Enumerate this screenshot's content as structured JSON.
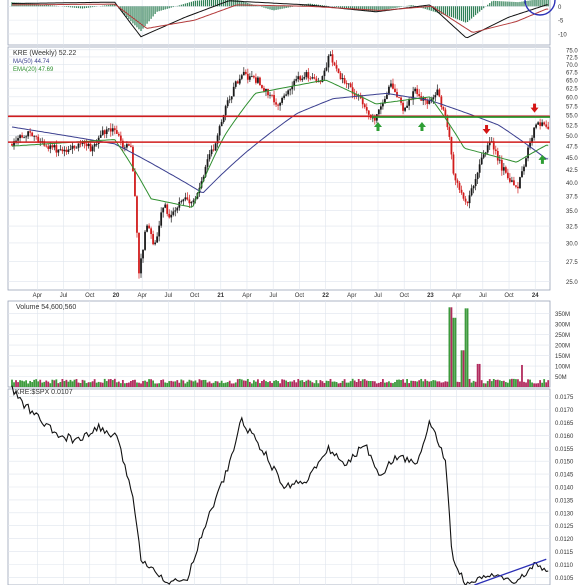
{
  "colors": {
    "background": "#ffffff",
    "panel_border": "#9aa3b8",
    "grid": "#dfe5ee",
    "up_candle": "#1a1a1a",
    "down_candle": "#d11c1c",
    "ma50": "#3b3f8f",
    "ema20": "#2f8f2f",
    "resistance": "#d11c1c",
    "support": "#1f9a2a",
    "arrow_up": "#2e9e34",
    "arrow_down": "#d41515",
    "volume_up": "#3c9a3c",
    "volume_down": "#b22b5e",
    "ratio_line": "#111111",
    "trendline": "#2b2fb5",
    "macd_hist": "#2f7f55",
    "macd_line": "#111111",
    "macd_signal": "#b33a3a"
  },
  "legend": {
    "price": "KRE (Weekly) 52.22",
    "ma": "MA(50) 44.74",
    "ema": "EMA(20) 47.69",
    "volume": "Volume 54,600,560",
    "ratio": "KRE:$SPX 0.0107"
  },
  "top_panel_ticks": [
    "0",
    "-5",
    "-10"
  ],
  "x_labels": [
    "Apr",
    "Jul",
    "Oct",
    "20",
    "Apr",
    "Jul",
    "Oct",
    "21",
    "Apr",
    "Jul",
    "Oct",
    "22",
    "Apr",
    "Jul",
    "Oct",
    "23",
    "Apr",
    "Jul",
    "Oct",
    "24"
  ],
  "chart_data": [
    {
      "type": "candlestick",
      "title": "KRE (Weekly) 52.22",
      "x_range": [
        "2019-01",
        "2024-02"
      ],
      "ylim": [
        24,
        76
      ],
      "scale": "log",
      "y_ticks": [
        "75.0",
        "72.5",
        "70.0",
        "67.5",
        "65.0",
        "62.5",
        "60.0",
        "57.5",
        "55.0",
        "52.5",
        "50.0",
        "47.5",
        "45.0",
        "42.5",
        "40.0",
        "37.5",
        "35.0",
        "32.5",
        "30.0",
        "27.5",
        "25.0"
      ],
      "close_path": [
        [
          "2019-01-04",
          48.0
        ],
        [
          "2019-03-01",
          50.5
        ],
        [
          "2019-05-03",
          47.5
        ],
        [
          "2019-06-07",
          46.8
        ],
        [
          "2019-08-02",
          47.0
        ],
        [
          "2019-09-06",
          48.5
        ],
        [
          "2019-10-04",
          47.0
        ],
        [
          "2019-11-29",
          51.5
        ],
        [
          "2020-01-03",
          50.5
        ],
        [
          "2020-01-31",
          47.0
        ],
        [
          "2020-02-21",
          48.5
        ],
        [
          "2020-03-13",
          32.0
        ],
        [
          "2020-03-20",
          25.5
        ],
        [
          "2020-04-17",
          33.0
        ],
        [
          "2020-05-15",
          29.5
        ],
        [
          "2020-06-12",
          36.0
        ],
        [
          "2020-07-10",
          34.0
        ],
        [
          "2020-08-28",
          37.5
        ],
        [
          "2020-10-02",
          36.0
        ],
        [
          "2020-11-13",
          44.0
        ],
        [
          "2020-12-18",
          49.0
        ],
        [
          "2021-01-15",
          57.0
        ],
        [
          "2021-03-12",
          67.0
        ],
        [
          "2021-05-07",
          65.0
        ],
        [
          "2021-07-16",
          57.5
        ],
        [
          "2021-08-27",
          63.0
        ],
        [
          "2021-10-22",
          67.0
        ],
        [
          "2021-12-17",
          64.0
        ],
        [
          "2022-01-14",
          73.0
        ],
        [
          "2022-02-25",
          66.0
        ],
        [
          "2022-04-22",
          60.0
        ],
        [
          "2022-06-17",
          53.5
        ],
        [
          "2022-08-12",
          63.5
        ],
        [
          "2022-09-30",
          56.5
        ],
        [
          "2022-11-11",
          62.0
        ],
        [
          "2022-12-16",
          58.0
        ],
        [
          "2023-01-27",
          61.5
        ],
        [
          "2023-03-10",
          49.0
        ],
        [
          "2023-03-17",
          42.0
        ],
        [
          "2023-05-05",
          35.5
        ],
        [
          "2023-06-09",
          41.5
        ],
        [
          "2023-07-28",
          49.0
        ],
        [
          "2023-09-01",
          43.5
        ],
        [
          "2023-10-27",
          38.5
        ],
        [
          "2023-12-08",
          47.0
        ],
        [
          "2024-01-05",
          53.5
        ],
        [
          "2024-02-09",
          52.2
        ]
      ],
      "ma50_path": [
        [
          "2019-01-04",
          52.0
        ],
        [
          "2019-12-27",
          48.0
        ],
        [
          "2020-06-26",
          42.0
        ],
        [
          "2020-10-30",
          38.0
        ],
        [
          "2021-03-26",
          46.0
        ],
        [
          "2021-09-24",
          55.5
        ],
        [
          "2022-01-28",
          59.5
        ],
        [
          "2022-07-29",
          61.0
        ],
        [
          "2022-12-30",
          59.0
        ],
        [
          "2023-05-26",
          55.0
        ],
        [
          "2023-08-25",
          52.5
        ],
        [
          "2024-02-09",
          44.7
        ]
      ],
      "ema20_path": [
        [
          "2019-01-04",
          47.5
        ],
        [
          "2019-12-27",
          49.0
        ],
        [
          "2020-05-01",
          37.0
        ],
        [
          "2020-09-25",
          35.5
        ],
        [
          "2021-01-15",
          50.0
        ],
        [
          "2021-04-30",
          61.0
        ],
        [
          "2021-12-31",
          65.0
        ],
        [
          "2022-06-24",
          58.0
        ],
        [
          "2022-12-30",
          60.0
        ],
        [
          "2023-04-28",
          47.0
        ],
        [
          "2023-10-27",
          44.0
        ],
        [
          "2024-02-09",
          47.7
        ]
      ],
      "horizontal_lines": [
        {
          "kind": "resistance",
          "y": 54.7
        },
        {
          "kind": "resistance",
          "y": 48.4
        },
        {
          "kind": "support",
          "y": 54.5
        }
      ],
      "up_arrows": [
        [
          "2022-07-01",
          52.0
        ],
        [
          "2022-12-02",
          52.0
        ],
        [
          "2024-01-26",
          44.5
        ]
      ],
      "down_arrows": [
        [
          "2023-07-14",
          51.5
        ],
        [
          "2023-12-29",
          57.0
        ]
      ]
    },
    {
      "type": "bar",
      "title": "Volume 54,600,560",
      "ylim": [
        0,
        410
      ],
      "y_ticks": [
        "350M",
        "300M",
        "250M",
        "200M",
        "150M",
        "100M",
        "50M"
      ],
      "baseline_volume_m": 28,
      "spikes": [
        [
          "2023-03-10",
          380
        ],
        [
          "2023-03-24",
          330
        ],
        [
          "2023-04-21",
          175
        ],
        [
          "2023-05-05",
          375
        ],
        [
          "2023-06-16",
          110
        ],
        [
          "2023-11-17",
          105
        ]
      ]
    },
    {
      "type": "line",
      "title": "KRE:$SPX 0.0107",
      "ylim": [
        0.0102,
        0.0178
      ],
      "y_ticks": [
        "0.0175",
        "0.0170",
        "0.0165",
        "0.0160",
        "0.0155",
        "0.0150",
        "0.0145",
        "0.0140",
        "0.0135",
        "0.0130",
        "0.0125",
        "0.0120",
        "0.0115",
        "0.0110",
        "0.0105"
      ],
      "series": [
        [
          "2019-01-04",
          0.0178
        ],
        [
          "2019-02-15",
          0.0172
        ],
        [
          "2019-04-12",
          0.0166
        ],
        [
          "2019-06-07",
          0.016
        ],
        [
          "2019-08-30",
          0.0158
        ],
        [
          "2019-11-01",
          0.0163
        ],
        [
          "2020-01-03",
          0.0159
        ],
        [
          "2020-02-28",
          0.0138
        ],
        [
          "2020-03-27",
          0.0112
        ],
        [
          "2020-05-15",
          0.0108
        ],
        [
          "2020-06-26",
          0.0103
        ],
        [
          "2020-09-04",
          0.0104
        ],
        [
          "2020-11-06",
          0.0125
        ],
        [
          "2021-01-29",
          0.0148
        ],
        [
          "2021-03-12",
          0.0166
        ],
        [
          "2021-05-28",
          0.0154
        ],
        [
          "2021-08-06",
          0.014
        ],
        [
          "2021-10-29",
          0.0143
        ],
        [
          "2022-01-14",
          0.0155
        ],
        [
          "2022-03-11",
          0.0148
        ],
        [
          "2022-05-13",
          0.0157
        ],
        [
          "2022-07-08",
          0.0145
        ],
        [
          "2022-09-09",
          0.0152
        ],
        [
          "2022-11-11",
          0.0149
        ],
        [
          "2022-12-30",
          0.0165
        ],
        [
          "2023-02-24",
          0.015
        ],
        [
          "2023-03-17",
          0.0112
        ],
        [
          "2023-05-05",
          0.0102
        ],
        [
          "2023-07-28",
          0.0106
        ],
        [
          "2023-10-27",
          0.0103
        ],
        [
          "2023-12-29",
          0.011
        ],
        [
          "2024-02-09",
          0.0107
        ]
      ],
      "trendline": [
        [
          "2023-06-02",
          0.0102
        ],
        [
          "2024-02-09",
          0.0112
        ]
      ]
    },
    {
      "type": "bar",
      "title": "",
      "ylim": [
        -14,
        3
      ],
      "y_ticks": [
        "0",
        "-5",
        "-10"
      ],
      "histogram": [
        [
          "2019-01-04",
          1.5
        ],
        [
          "2019-05-03",
          0.5
        ],
        [
          "2019-09-06",
          -0.8
        ],
        [
          "2019-12-27",
          0.8
        ],
        [
          "2020-02-28",
          -6.0
        ],
        [
          "2020-03-27",
          -9.0
        ],
        [
          "2020-05-22",
          -2.0
        ],
        [
          "2020-10-02",
          2.0
        ],
        [
          "2021-02-05",
          3.0
        ],
        [
          "2021-07-02",
          -1.5
        ],
        [
          "2021-11-05",
          1.0
        ],
        [
          "2022-02-25",
          -0.5
        ],
        [
          "2022-06-17",
          -2.0
        ],
        [
          "2022-10-28",
          0.5
        ],
        [
          "2023-03-17",
          -4.0
        ],
        [
          "2023-05-05",
          -6.0
        ],
        [
          "2023-08-04",
          2.0
        ],
        [
          "2023-11-03",
          1.5
        ],
        [
          "2024-02-09",
          3.0
        ]
      ],
      "macd_line": [
        [
          "2019-01-04",
          1.0
        ],
        [
          "2019-12-27",
          1.5
        ],
        [
          "2020-03-27",
          -11.0
        ],
        [
          "2020-08-28",
          -4.0
        ],
        [
          "2021-01-29",
          2.0
        ],
        [
          "2021-10-29",
          0.5
        ],
        [
          "2022-06-24",
          -2.0
        ],
        [
          "2022-12-30",
          0.5
        ],
        [
          "2023-05-05",
          -11.5
        ],
        [
          "2023-09-29",
          -4.0
        ],
        [
          "2024-02-09",
          0.5
        ]
      ],
      "signal_line": [
        [
          "2019-01-04",
          0.5
        ],
        [
          "2019-12-27",
          0.8
        ],
        [
          "2020-04-17",
          -8.0
        ],
        [
          "2020-10-02",
          -5.0
        ],
        [
          "2021-02-26",
          0.5
        ],
        [
          "2021-11-05",
          0.0
        ],
        [
          "2022-07-08",
          -1.5
        ],
        [
          "2023-01-06",
          0.0
        ],
        [
          "2023-05-26",
          -9.5
        ],
        [
          "2023-10-27",
          -5.5
        ],
        [
          "2024-02-09",
          -1.0
        ]
      ]
    }
  ]
}
